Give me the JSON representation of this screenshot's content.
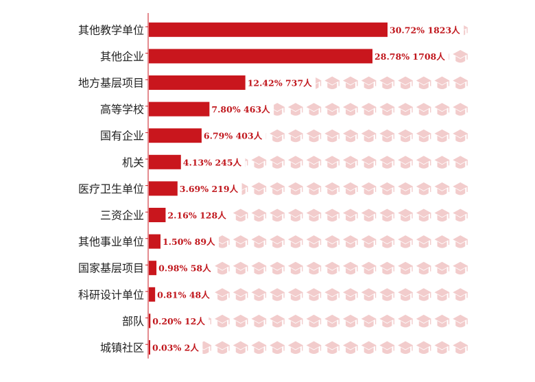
{
  "colors": {
    "bar": "#c9161d",
    "axis": "#c9161d",
    "icon": "#f2cccc",
    "label": "#c0161c"
  },
  "icon": "graduation-cap-icon",
  "chart_data": {
    "type": "bar",
    "orientation": "horizontal",
    "title": "",
    "xlabel": "",
    "ylabel": "",
    "xlim": [
      0,
      1823
    ],
    "grid": false,
    "legend": "none",
    "categories": [
      "其他教学单位",
      "其他企业",
      "地方基层项目",
      "高等学校",
      "国有企业",
      "机关",
      "医疗卫生单位",
      "三资企业",
      "其他事业单位",
      "国家基层项目",
      "科研设计单位",
      "部队",
      "城镇社区"
    ],
    "values": [
      1823,
      1708,
      737,
      463,
      403,
      245,
      219,
      128,
      89,
      58,
      48,
      12,
      2
    ],
    "percents": [
      "30.72%",
      "28.78%",
      "12.42%",
      "7.80%",
      "6.79%",
      "4.13%",
      "3.69%",
      "2.16%",
      "1.50%",
      "0.98%",
      "0.81%",
      "0.20%",
      "0.03%"
    ],
    "labels": [
      "30.72% 1823人",
      "28.78% 1708人",
      "12.42% 737人",
      "7.80% 463人",
      "6.79% 403人",
      "4.13% 245人",
      "3.69% 219人",
      "2.16% 128人",
      "1.50% 89人",
      "0.98% 58人",
      "0.81% 48人",
      "0.20% 12人",
      "0.03% 2人"
    ]
  }
}
